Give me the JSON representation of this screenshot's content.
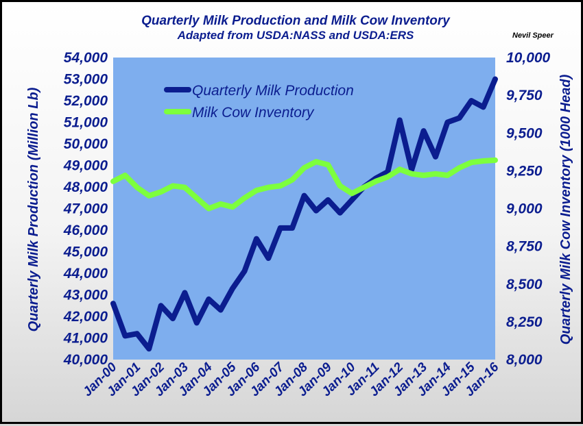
{
  "chart_data": {
    "type": "line",
    "title": "Quarterly Milk Production and Milk Cow Inventory",
    "subtitle": "Adapted from USDA:NASS and USDA:ERS",
    "credit": "Nevil Speer",
    "ylabel": "Quarterly Milk Production (Million Lb)",
    "y2label": "Quarterly Milk Cow Inventory (1000 Head)",
    "ylim": [
      40000,
      54000
    ],
    "y2lim": [
      8000,
      10000
    ],
    "y_ticks": [
      "40,000",
      "41,000",
      "42,000",
      "43,000",
      "44,000",
      "45,000",
      "46,000",
      "47,000",
      "48,000",
      "49,000",
      "50,000",
      "51,000",
      "52,000",
      "53,000",
      "54,000"
    ],
    "y2_ticks": [
      "8,000",
      "8,250",
      "8,500",
      "8,750",
      "9,000",
      "9,250",
      "9,500",
      "9,750",
      "10,000"
    ],
    "x_ticks": [
      "Jan-00",
      "Jan-01",
      "Jan-02",
      "Jan-03",
      "Jan-04",
      "Jan-05",
      "Jan-06",
      "Jan-07",
      "Jan-08",
      "Jan-09",
      "Jan-10",
      "Jan-11",
      "Jan-12",
      "Jan-13",
      "Jan-14",
      "Jan-15",
      "Jan-16"
    ],
    "legend_position": "top-left",
    "grid": false,
    "plot_background": "#7eaeee",
    "series": [
      {
        "name": "Quarterly Milk Production",
        "axis": "left",
        "color": "#0b1d8f",
        "values": [
          42600,
          41100,
          41200,
          40500,
          42500,
          41900,
          43100,
          41700,
          42800,
          42300,
          43300,
          44100,
          45600,
          44700,
          46100,
          46100,
          47600,
          46900,
          47400,
          46800,
          47400,
          48000,
          48400,
          48700,
          51100,
          48800,
          50600,
          49400,
          51000,
          51200,
          52000,
          51700,
          53000
        ]
      },
      {
        "name": "Milk Cow Inventory",
        "axis": "right",
        "color": "#7dff3d",
        "values": [
          9180,
          9220,
          9140,
          9085,
          9110,
          9150,
          9140,
          9070,
          9000,
          9030,
          9010,
          9070,
          9120,
          9140,
          9150,
          9190,
          9270,
          9310,
          9290,
          9150,
          9100,
          9140,
          9180,
          9210,
          9260,
          9230,
          9220,
          9230,
          9220,
          9270,
          9305,
          9315,
          9320
        ]
      }
    ]
  }
}
